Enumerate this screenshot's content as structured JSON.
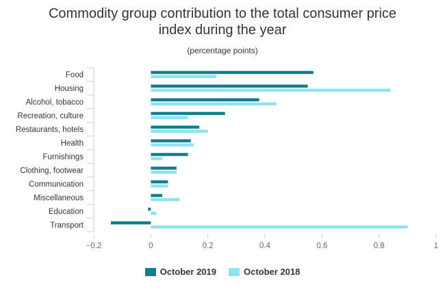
{
  "chart_data": {
    "type": "bar",
    "orientation": "horizontal",
    "title_lines": [
      "Commodity group contribution to the total consumer price",
      "index during the year"
    ],
    "subtitle": "(percentage points)",
    "categories": [
      "Food",
      "Housing",
      "Alcohol, tobacco",
      "Recreation, culture",
      "Restaurants, hotels",
      "Health",
      "Furnishings",
      "Clothing, footwear",
      "Communication",
      "Miscellaneous",
      "Education",
      "Transport"
    ],
    "series": [
      {
        "name": "October 2019",
        "color": "#0e7f8f",
        "values": [
          0.57,
          0.55,
          0.38,
          0.26,
          0.17,
          0.14,
          0.13,
          0.09,
          0.06,
          0.04,
          -0.01,
          -0.14
        ]
      },
      {
        "name": "October 2018",
        "color": "#91e2f0",
        "values": [
          0.23,
          0.84,
          0.44,
          0.13,
          0.2,
          0.15,
          0.04,
          0.09,
          0.06,
          0.1,
          0.02,
          0.9
        ]
      }
    ],
    "xlim": [
      -0.2,
      1.0
    ],
    "xticks": [
      "−0.2",
      "0",
      "0.2",
      "0.4",
      "0.6",
      "0.8",
      "1"
    ],
    "xtick_values": [
      -0.2,
      0,
      0.2,
      0.4,
      0.6,
      0.8,
      1.0
    ],
    "grid": false,
    "legend_position": "bottom-center"
  }
}
